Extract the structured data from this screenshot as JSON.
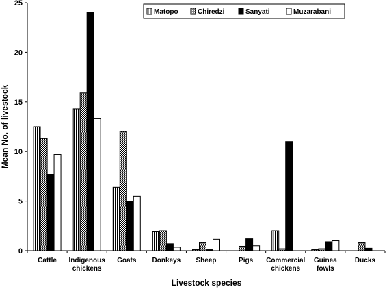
{
  "chart_data": {
    "type": "bar",
    "title": "",
    "xlabel": "Livestock species",
    "ylabel": "Mean No. of livestock",
    "ylim": [
      0,
      25
    ],
    "yticks": [
      0,
      5,
      10,
      15,
      20,
      25
    ],
    "categories": [
      [
        "Cattle"
      ],
      [
        "Indigenous",
        "chickens"
      ],
      [
        "Goats"
      ],
      [
        "Donkeys"
      ],
      [
        "Sheep"
      ],
      [
        "Pigs"
      ],
      [
        "Commercial",
        "chickens"
      ],
      [
        "Guinea",
        "fowls"
      ],
      [
        "Ducks"
      ]
    ],
    "series": [
      {
        "name": "Matopo",
        "pattern": "vstripe",
        "values": [
          12.5,
          14.3,
          6.4,
          1.9,
          0.1,
          0.0,
          2.0,
          0.1,
          0.0
        ]
      },
      {
        "name": "Chiredzi",
        "pattern": "check",
        "values": [
          11.3,
          15.9,
          12.0,
          2.0,
          0.8,
          0.45,
          0.2,
          0.2,
          0.8
        ]
      },
      {
        "name": "Sanyati",
        "pattern": "solid",
        "values": [
          7.7,
          24.0,
          5.0,
          0.7,
          0.1,
          1.2,
          11.0,
          0.9,
          0.25
        ]
      },
      {
        "name": "Muzarabani",
        "pattern": "white",
        "values": [
          9.7,
          13.3,
          5.5,
          0.35,
          1.15,
          0.5,
          0.0,
          1.0,
          0.0
        ]
      }
    ],
    "legend_position": "top-right",
    "grid": false
  }
}
